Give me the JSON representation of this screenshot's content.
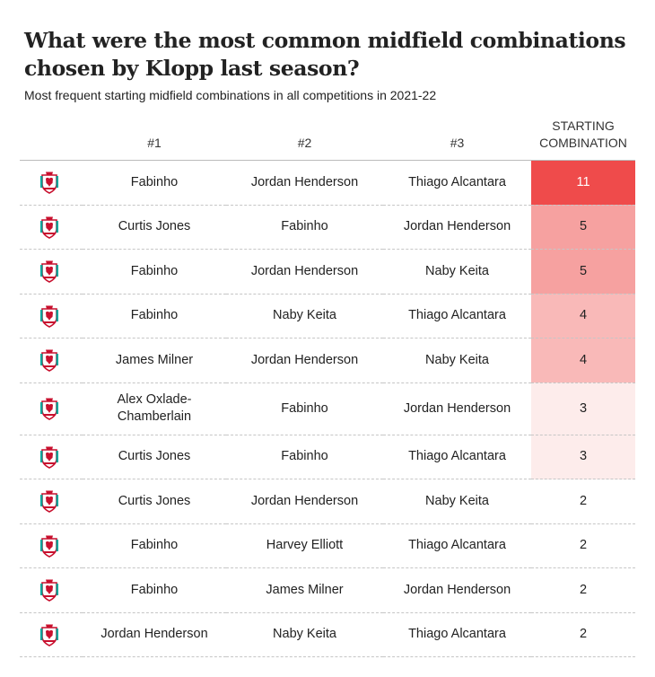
{
  "title": "What were the most common midfield combinations chosen by Klopp last season?",
  "subtitle": "Most frequent starting midfield combinations in all competitions in 2021-22",
  "colors": {
    "scale_high": "#ef4b4b",
    "scale_low": "#fdeceb",
    "scale_none": "#ffffff",
    "crest_red": "#c8102e",
    "crest_green": "#00a398"
  },
  "chart_data": {
    "type": "table",
    "columns": [
      "",
      "#1",
      "#2",
      "#3",
      "STARTING COMBINATION"
    ],
    "rows": [
      {
        "crest": "liverpool-crest-icon",
        "p1": "Fabinho",
        "p2": "Jordan Henderson",
        "p3": "Thiago Alcantara",
        "count": 11
      },
      {
        "crest": "liverpool-crest-icon",
        "p1": "Curtis Jones",
        "p2": "Fabinho",
        "p3": "Jordan Henderson",
        "count": 5
      },
      {
        "crest": "liverpool-crest-icon",
        "p1": "Fabinho",
        "p2": "Jordan Henderson",
        "p3": "Naby Keita",
        "count": 5
      },
      {
        "crest": "liverpool-crest-icon",
        "p1": "Fabinho",
        "p2": "Naby Keita",
        "p3": "Thiago Alcantara",
        "count": 4
      },
      {
        "crest": "liverpool-crest-icon",
        "p1": "James Milner",
        "p2": "Jordan Henderson",
        "p3": "Naby Keita",
        "count": 4
      },
      {
        "crest": "liverpool-crest-icon",
        "p1": "Alex Oxlade-Chamberlain",
        "p2": "Fabinho",
        "p3": "Jordan Henderson",
        "count": 3
      },
      {
        "crest": "liverpool-crest-icon",
        "p1": "Curtis Jones",
        "p2": "Fabinho",
        "p3": "Thiago Alcantara",
        "count": 3
      },
      {
        "crest": "liverpool-crest-icon",
        "p1": "Curtis Jones",
        "p2": "Jordan Henderson",
        "p3": "Naby Keita",
        "count": 2
      },
      {
        "crest": "liverpool-crest-icon",
        "p1": "Fabinho",
        "p2": "Harvey Elliott",
        "p3": "Thiago Alcantara",
        "count": 2
      },
      {
        "crest": "liverpool-crest-icon",
        "p1": "Fabinho",
        "p2": "James Milner",
        "p3": "Jordan Henderson",
        "count": 2
      },
      {
        "crest": "liverpool-crest-icon",
        "p1": "Jordan Henderson",
        "p2": "Naby Keita",
        "p3": "Thiago Alcantara",
        "count": 2
      }
    ]
  }
}
